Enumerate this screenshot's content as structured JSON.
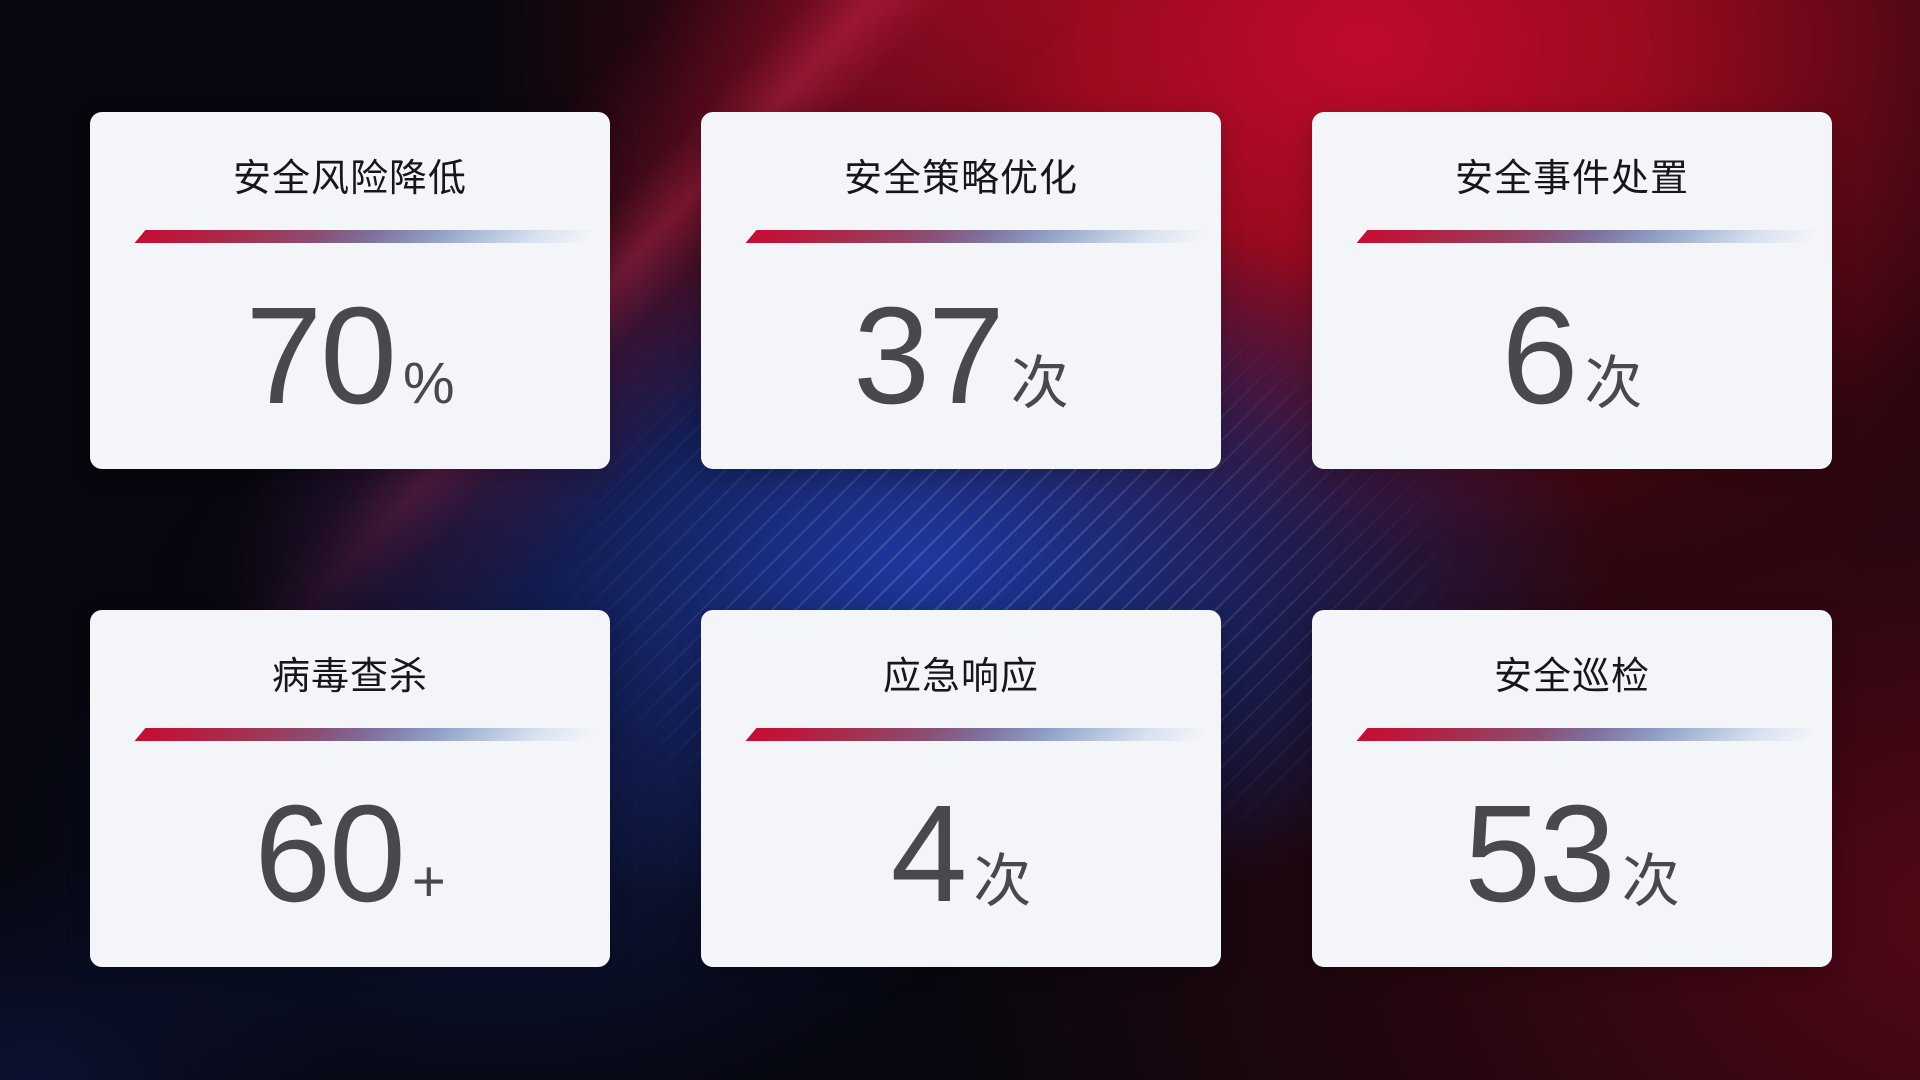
{
  "cards": [
    {
      "title": "安全风险降低",
      "value": "70",
      "unit": "%"
    },
    {
      "title": "安全策略优化",
      "value": "37",
      "unit": "次"
    },
    {
      "title": "安全事件处置",
      "value": "6",
      "unit": "次"
    },
    {
      "title": "病毒查杀",
      "value": "60",
      "unit": "+"
    },
    {
      "title": "应急响应",
      "value": "4",
      "unit": "次"
    },
    {
      "title": "安全巡检",
      "value": "53",
      "unit": "次"
    }
  ],
  "colors": {
    "page_bg": "#06070f",
    "card_bg": "#f3f5f9",
    "title_color": "#15171c",
    "value_color": "#47494f",
    "divider_red": "#c50e32",
    "divider_blue": "#b4c3dd",
    "bg_red_bright": "#c00a2e",
    "bg_red_dark": "#45060f",
    "bg_blue": "#1e3aa0"
  }
}
